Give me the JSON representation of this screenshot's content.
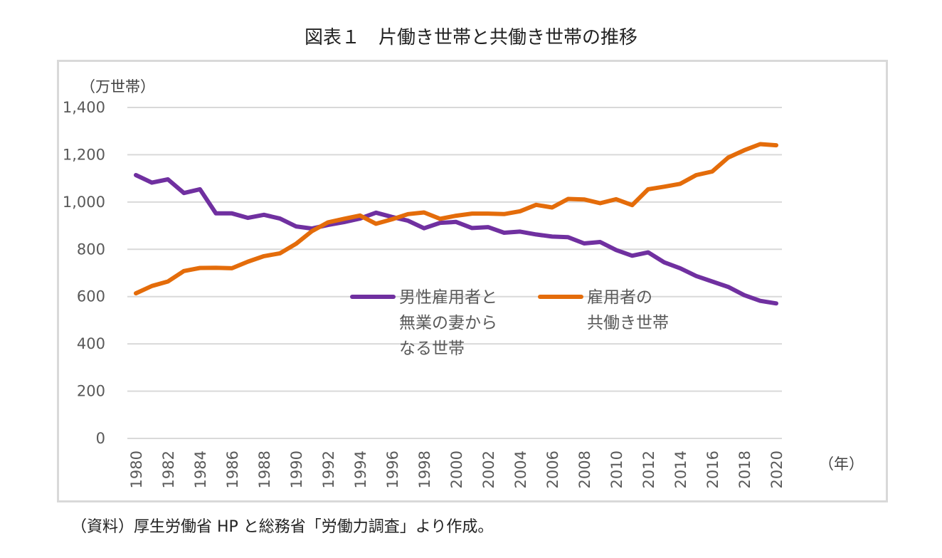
{
  "title": "図表１　片働き世帯と共働き世帯の推移",
  "source": "（資料）厚生労働省 HP と総務省「労働力調査」より作成。",
  "colors": {
    "male_single": "#7030a0",
    "dual": "#e46c0a",
    "grid": "#d9d9d9",
    "frame": "#d9d9d9"
  },
  "chart_data": {
    "type": "line",
    "title": "図表１　片働き世帯と共働き世帯の推移",
    "ylabel": "（万世帯）",
    "xlabel": "（年）",
    "ylim": [
      0,
      1400
    ],
    "yticks": [
      0,
      200,
      400,
      600,
      800,
      1000,
      1200,
      1400
    ],
    "ytick_labels": [
      "0",
      "200",
      "400",
      "600",
      "800",
      "1,000",
      "1,200",
      "1,400"
    ],
    "xtick_labels": [
      "1980",
      "1982",
      "1984",
      "1986",
      "1988",
      "1990",
      "1992",
      "1994",
      "1996",
      "1998",
      "2000",
      "2002",
      "2004",
      "2006",
      "2008",
      "2010",
      "2012",
      "2014",
      "2016",
      "2018",
      "2020"
    ],
    "grid": true,
    "legend_position": "center",
    "x": [
      1980,
      1981,
      1982,
      1983,
      1984,
      1985,
      1986,
      1987,
      1988,
      1989,
      1990,
      1991,
      1992,
      1993,
      1994,
      1995,
      1996,
      1997,
      1998,
      1999,
      2000,
      2001,
      2002,
      2003,
      2004,
      2005,
      2006,
      2007,
      2008,
      2009,
      2010,
      2011,
      2012,
      2013,
      2014,
      2015,
      2016,
      2017,
      2018,
      2019,
      2020
    ],
    "series": [
      {
        "name": "男性雇用者と無業の妻からなる世帯",
        "legend_lines": [
          "男性雇用者と",
          "無業の妻から",
          "なる世帯"
        ],
        "color": "#7030a0",
        "values": [
          1114,
          1082,
          1096,
          1038,
          1054,
          952,
          952,
          933,
          946,
          930,
          897,
          888,
          903,
          915,
          930,
          955,
          937,
          921,
          889,
          912,
          916,
          890,
          894,
          870,
          875,
          863,
          854,
          851,
          825,
          831,
          797,
          773,
          787,
          745,
          720,
          687,
          664,
          641,
          606,
          582,
          571
        ]
      },
      {
        "name": "雇用者の共働き世帯",
        "legend_lines": [
          "雇用者の",
          "共働き世帯"
        ],
        "color": "#e46c0a",
        "values": [
          614,
          645,
          664,
          708,
          721,
          722,
          720,
          748,
          771,
          783,
          823,
          877,
          914,
          929,
          943,
          908,
          927,
          949,
          956,
          929,
          942,
          951,
          951,
          949,
          961,
          988,
          977,
          1013,
          1011,
          995,
          1012,
          987,
          1054,
          1065,
          1077,
          1114,
          1129,
          1188,
          1219,
          1245,
          1240
        ]
      }
    ]
  }
}
